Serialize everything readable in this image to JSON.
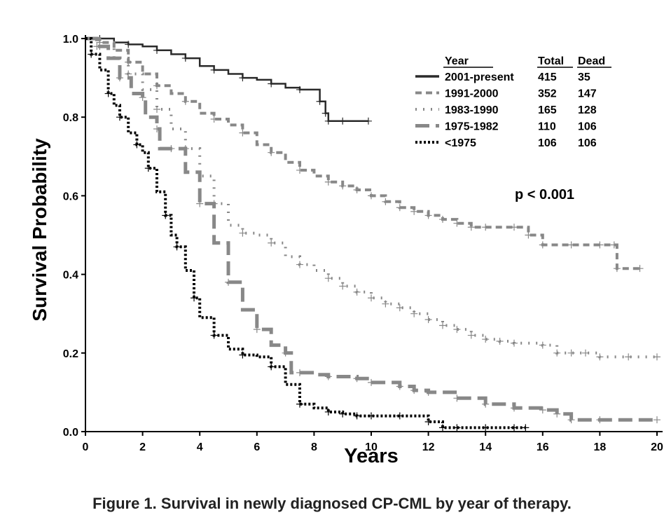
{
  "caption": "Figure 1. Survival in newly diagnosed CP-CML by year of therapy.",
  "annotation": "p < 0.001",
  "chart_data": {
    "type": "line",
    "title": "",
    "xlabel": "Years",
    "ylabel": "Survival Probability",
    "xlim": [
      0,
      20
    ],
    "ylim": [
      0,
      1.0
    ],
    "x_ticks": [
      0,
      2,
      4,
      6,
      8,
      10,
      12,
      14,
      16,
      18,
      20
    ],
    "y_ticks": [
      "0.0",
      "0.2",
      "0.4",
      "0.6",
      "0.8",
      "1.0"
    ],
    "legend": {
      "placement": "top-right",
      "headers": [
        "Year",
        "Total",
        "Dead"
      ],
      "entries": [
        {
          "label": "2001-present",
          "total": "415",
          "dead": "35"
        },
        {
          "label": "1991-2000",
          "total": "352",
          "dead": "147"
        },
        {
          "label": "1983-1990",
          "total": "165",
          "dead": "128"
        },
        {
          "label": "1975-1982",
          "total": "110",
          "dead": "106"
        },
        {
          "label": "<1975",
          "total": "106",
          "dead": "106"
        }
      ]
    },
    "series": [
      {
        "name": "2001-present",
        "color": "#2a2a2a",
        "style": "solid",
        "points": [
          [
            0,
            1.0
          ],
          [
            0.5,
            1.0
          ],
          [
            1,
            0.99
          ],
          [
            1.5,
            0.985
          ],
          [
            2,
            0.98
          ],
          [
            2.5,
            0.97
          ],
          [
            3,
            0.96
          ],
          [
            3.5,
            0.95
          ],
          [
            4,
            0.93
          ],
          [
            4.5,
            0.92
          ],
          [
            5,
            0.91
          ],
          [
            5.5,
            0.9
          ],
          [
            6,
            0.895
          ],
          [
            6.5,
            0.885
          ],
          [
            7,
            0.875
          ],
          [
            7.5,
            0.87
          ],
          [
            8.0,
            0.87
          ],
          [
            8.2,
            0.84
          ],
          [
            8.4,
            0.81
          ],
          [
            8.5,
            0.79
          ],
          [
            9.0,
            0.79
          ],
          [
            9.9,
            0.79
          ]
        ]
      },
      {
        "name": "1991-2000",
        "color": "#888888",
        "style": "dashed",
        "points": [
          [
            0,
            1.0
          ],
          [
            0.5,
            0.99
          ],
          [
            1,
            0.97
          ],
          [
            1.5,
            0.94
          ],
          [
            2,
            0.91
          ],
          [
            2.5,
            0.88
          ],
          [
            3,
            0.86
          ],
          [
            3.5,
            0.84
          ],
          [
            4,
            0.81
          ],
          [
            4.5,
            0.795
          ],
          [
            5,
            0.78
          ],
          [
            5.5,
            0.76
          ],
          [
            6,
            0.73
          ],
          [
            6.5,
            0.71
          ],
          [
            7,
            0.685
          ],
          [
            7.5,
            0.665
          ],
          [
            8,
            0.65
          ],
          [
            8.5,
            0.635
          ],
          [
            9,
            0.625
          ],
          [
            9.5,
            0.615
          ],
          [
            10,
            0.6
          ],
          [
            10.5,
            0.585
          ],
          [
            11,
            0.57
          ],
          [
            11.5,
            0.56
          ],
          [
            12,
            0.55
          ],
          [
            12.5,
            0.54
          ],
          [
            13,
            0.53
          ],
          [
            13.5,
            0.52
          ],
          [
            14,
            0.52
          ],
          [
            15,
            0.52
          ],
          [
            15.5,
            0.5
          ],
          [
            16,
            0.475
          ],
          [
            17,
            0.475
          ],
          [
            18,
            0.475
          ],
          [
            18.5,
            0.475
          ],
          [
            18.6,
            0.415
          ],
          [
            19.4,
            0.415
          ]
        ]
      },
      {
        "name": "1983-1990",
        "color": "#888888",
        "style": "dotted",
        "points": [
          [
            0,
            1.0
          ],
          [
            0.5,
            0.98
          ],
          [
            1,
            0.95
          ],
          [
            1.5,
            0.91
          ],
          [
            2,
            0.87
          ],
          [
            2.5,
            0.82
          ],
          [
            3,
            0.77
          ],
          [
            3.5,
            0.72
          ],
          [
            4,
            0.65
          ],
          [
            4.5,
            0.58
          ],
          [
            5,
            0.525
          ],
          [
            5.5,
            0.505
          ],
          [
            6,
            0.5
          ],
          [
            6.5,
            0.48
          ],
          [
            7,
            0.445
          ],
          [
            7.5,
            0.425
          ],
          [
            8,
            0.41
          ],
          [
            8.5,
            0.39
          ],
          [
            9,
            0.37
          ],
          [
            9.5,
            0.355
          ],
          [
            10,
            0.34
          ],
          [
            10.5,
            0.325
          ],
          [
            11,
            0.315
          ],
          [
            11.5,
            0.3
          ],
          [
            12,
            0.285
          ],
          [
            12.5,
            0.27
          ],
          [
            13,
            0.26
          ],
          [
            13.5,
            0.245
          ],
          [
            14,
            0.235
          ],
          [
            14.5,
            0.23
          ],
          [
            15,
            0.225
          ],
          [
            16,
            0.22
          ],
          [
            16.5,
            0.2
          ],
          [
            17,
            0.2
          ],
          [
            17.5,
            0.2
          ],
          [
            18,
            0.19
          ],
          [
            19,
            0.19
          ],
          [
            20,
            0.19
          ]
        ]
      },
      {
        "name": "1975-1982",
        "color": "#888888",
        "style": "long-dash",
        "points": [
          [
            0,
            1.0
          ],
          [
            0.4,
            0.98
          ],
          [
            0.8,
            0.95
          ],
          [
            1.2,
            0.9
          ],
          [
            1.6,
            0.86
          ],
          [
            2.0,
            0.85
          ],
          [
            2.1,
            0.8
          ],
          [
            2.5,
            0.77
          ],
          [
            2.6,
            0.72
          ],
          [
            3.0,
            0.72
          ],
          [
            3.5,
            0.66
          ],
          [
            4,
            0.58
          ],
          [
            4.5,
            0.48
          ],
          [
            5,
            0.38
          ],
          [
            5.5,
            0.31
          ],
          [
            6.0,
            0.26
          ],
          [
            6.5,
            0.22
          ],
          [
            7.0,
            0.2
          ],
          [
            7.2,
            0.15
          ],
          [
            7.5,
            0.15
          ],
          [
            8.0,
            0.145
          ],
          [
            8.5,
            0.14
          ],
          [
            9.5,
            0.135
          ],
          [
            10,
            0.125
          ],
          [
            11,
            0.115
          ],
          [
            11.5,
            0.105
          ],
          [
            12,
            0.1
          ],
          [
            13,
            0.085
          ],
          [
            14,
            0.07
          ],
          [
            15,
            0.06
          ],
          [
            16,
            0.055
          ],
          [
            16.5,
            0.045
          ],
          [
            17,
            0.03
          ],
          [
            18,
            0.03
          ],
          [
            20,
            0.03
          ]
        ]
      },
      {
        "name": "<1975",
        "color": "#000000",
        "style": "fine-dot",
        "points": [
          [
            0,
            1.0
          ],
          [
            0.2,
            0.96
          ],
          [
            0.5,
            0.92
          ],
          [
            0.8,
            0.86
          ],
          [
            1.0,
            0.83
          ],
          [
            1.2,
            0.8
          ],
          [
            1.5,
            0.76
          ],
          [
            1.8,
            0.73
          ],
          [
            2,
            0.71
          ],
          [
            2.2,
            0.67
          ],
          [
            2.5,
            0.61
          ],
          [
            2.8,
            0.55
          ],
          [
            3.0,
            0.5
          ],
          [
            3.2,
            0.47
          ],
          [
            3.5,
            0.41
          ],
          [
            3.8,
            0.34
          ],
          [
            4,
            0.29
          ],
          [
            4.5,
            0.245
          ],
          [
            5,
            0.21
          ],
          [
            5.5,
            0.195
          ],
          [
            6,
            0.19
          ],
          [
            6.5,
            0.165
          ],
          [
            7,
            0.12
          ],
          [
            7.5,
            0.07
          ],
          [
            8,
            0.06
          ],
          [
            8.5,
            0.05
          ],
          [
            9,
            0.045
          ],
          [
            9.5,
            0.04
          ],
          [
            10,
            0.04
          ],
          [
            11,
            0.04
          ],
          [
            12,
            0.025
          ],
          [
            12.5,
            0.01
          ],
          [
            13,
            0.01
          ],
          [
            14,
            0.01
          ],
          [
            15,
            0.01
          ],
          [
            15.4,
            0.01
          ]
        ]
      }
    ]
  }
}
